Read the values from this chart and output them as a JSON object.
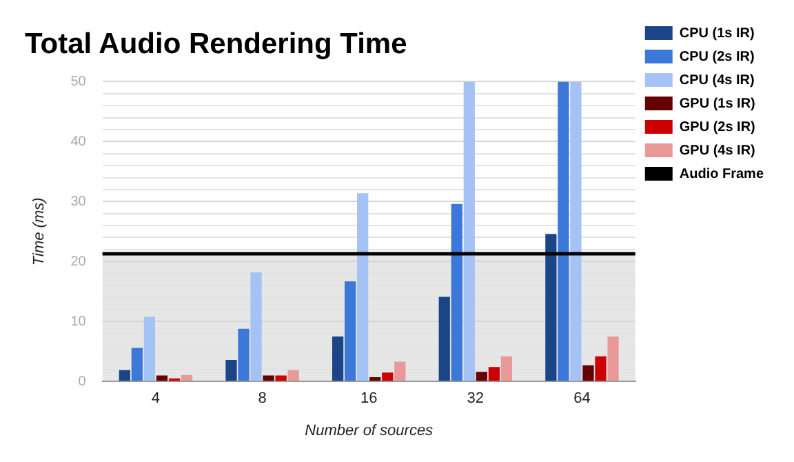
{
  "chart_data": {
    "type": "bar",
    "title": "Total Audio Rendering Time",
    "xlabel": "Number of sources",
    "ylabel": "Time (ms)",
    "categories": [
      "4",
      "8",
      "16",
      "32",
      "64"
    ],
    "series": [
      {
        "name": "CPU (1s IR)",
        "color": "#1c4587",
        "values": [
          1.9,
          3.6,
          7.5,
          14.1,
          24.6
        ]
      },
      {
        "name": "CPU (2s IR)",
        "color": "#3c78d8",
        "values": [
          5.6,
          8.8,
          16.7,
          29.6,
          50
        ]
      },
      {
        "name": "CPU (4s IR)",
        "color": "#a4c2f4",
        "values": [
          10.8,
          18.2,
          31.4,
          50,
          50
        ]
      },
      {
        "name": "GPU (1s IR)",
        "color": "#660000",
        "values": [
          1.0,
          1.0,
          0.7,
          1.6,
          2.7
        ]
      },
      {
        "name": "GPU (2s IR)",
        "color": "#cc0000",
        "values": [
          0.5,
          1.0,
          1.5,
          2.4,
          4.2
        ]
      },
      {
        "name": "GPU (4s IR)",
        "color": "#ea9999",
        "values": [
          1.1,
          1.9,
          3.3,
          4.2,
          7.5
        ]
      }
    ],
    "ref_lines": [
      {
        "axis": "y",
        "value": 21.3,
        "label": "Audio Frame",
        "color": "#000000"
      }
    ],
    "bands": [
      {
        "axis": "y",
        "from": 0,
        "to": 21.3,
        "color": "#e6e6e6"
      }
    ],
    "ylim": [
      0,
      50
    ],
    "yticks": [
      0,
      {
        "value": 2,
        "label": null
      },
      {
        "value": 4,
        "label": null
      },
      {
        "value": 6,
        "label": null
      },
      {
        "value": 8,
        "label": null
      },
      10,
      {
        "value": 12,
        "label": null
      },
      {
        "value": 14,
        "label": null
      },
      {
        "value": 16,
        "label": null
      },
      {
        "value": 18,
        "label": null
      },
      20,
      {
        "value": 22,
        "label": null
      },
      {
        "value": 24,
        "label": null
      },
      {
        "value": 26,
        "label": null
      },
      {
        "value": 28,
        "label": null
      },
      30,
      {
        "value": 32,
        "label": null
      },
      {
        "value": 34,
        "label": null
      },
      {
        "value": 36,
        "label": null
      },
      {
        "value": 38,
        "label": null
      },
      40,
      {
        "value": 42,
        "label": null
      },
      {
        "value": 44,
        "label": null
      },
      {
        "value": 46,
        "label": null
      },
      {
        "value": 48,
        "label": null
      },
      50
    ],
    "grid": "y",
    "legend": "right"
  }
}
